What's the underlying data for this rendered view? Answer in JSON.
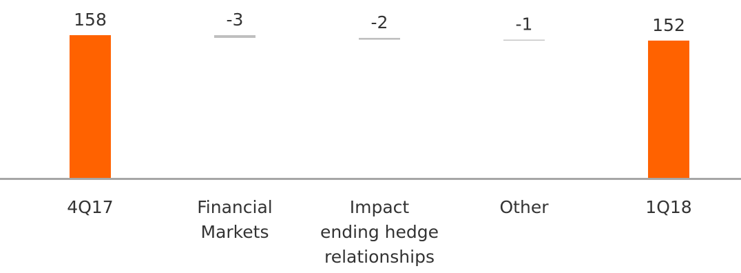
{
  "chart_data": {
    "type": "bar",
    "subtype": "waterfall",
    "title": "",
    "xlabel": "",
    "ylabel": "",
    "grid": false,
    "legend": "none",
    "ylim": [
      0,
      160
    ],
    "categories": [
      [
        "4Q17"
      ],
      [
        "Financial",
        "Markets"
      ],
      [
        "Impact",
        "ending hedge",
        "relationships"
      ],
      [
        "Other"
      ],
      [
        "1Q18"
      ]
    ],
    "values": [
      158,
      -3,
      -2,
      -1,
      152
    ],
    "labels": [
      "158",
      "-3",
      "-2",
      "-1",
      "152"
    ],
    "kinds": [
      "total",
      "delta",
      "delta",
      "delta",
      "total"
    ],
    "colors": {
      "total": "#FF6200",
      "delta": "#BFBFBF",
      "axis": "#A6A6A6",
      "text": "#333333"
    }
  }
}
